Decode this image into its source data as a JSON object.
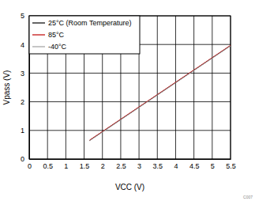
{
  "chart_data": {
    "type": "line",
    "x_label": "VCC (V)",
    "y_label": "Vpass (V)",
    "annotation": "C007",
    "x": [
      1.65,
      2,
      2.5,
      3,
      3.5,
      4,
      4.5,
      5,
      5.5
    ],
    "series": [
      {
        "name": "25°C (Room Temperature)",
        "color": "#000000",
        "values": [
          0.65,
          0.95,
          1.38,
          1.81,
          2.24,
          2.67,
          3.1,
          3.53,
          3.96
        ]
      },
      {
        "name": "85°C",
        "color": "#c00000",
        "values": [
          0.66,
          0.96,
          1.39,
          1.82,
          2.25,
          2.68,
          3.11,
          3.54,
          3.97
        ]
      },
      {
        "name": "-40°C",
        "color": "#a0a0a0",
        "values": [
          0.64,
          0.94,
          1.37,
          1.8,
          2.23,
          2.66,
          3.09,
          3.52,
          3.95
        ]
      }
    ],
    "xlim": [
      0,
      5.5
    ],
    "xticks": [
      0,
      0.5,
      1,
      1.5,
      2,
      2.5,
      3,
      3.5,
      4,
      4.5,
      5,
      5.5
    ],
    "ylim": [
      0,
      5
    ],
    "yticks": [
      0,
      1,
      2,
      3,
      4,
      5
    ],
    "grid": true,
    "legend": "top-left"
  }
}
